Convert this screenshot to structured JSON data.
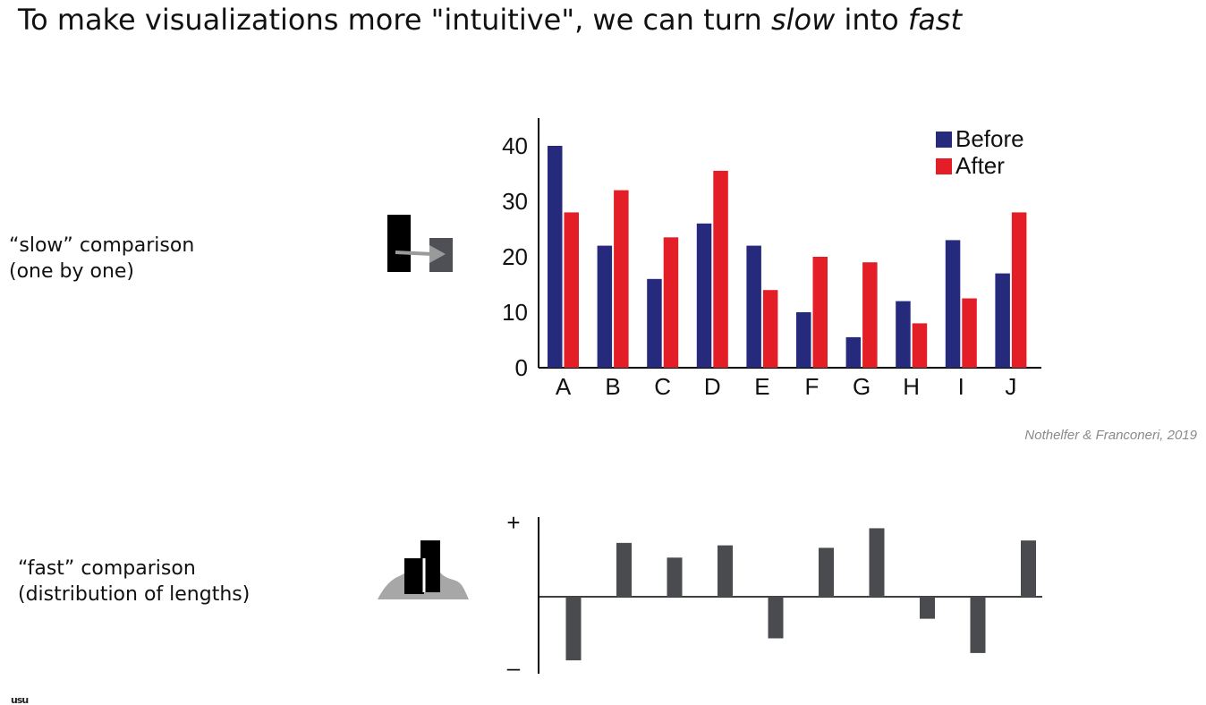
{
  "slide": {
    "title_pre": "To make visualizations more \"intuitive\", we can turn ",
    "title_slow": "slow",
    "title_mid": " into ",
    "title_fast": "fast",
    "slow_label_line1": "“slow” comparison",
    "slow_label_line2": "(one by one)",
    "fast_label_line1": "“fast” comparison",
    "fast_label_line2": "(distribution of lengths)",
    "citation": "Nothelfer & Franconeri, 2019",
    "footer_mark": "usu",
    "slow_icon": "side-by-side-compare-icon",
    "fast_icon": "length-distribution-icon"
  },
  "chart_data": [
    {
      "type": "bar",
      "categories": [
        "A",
        "B",
        "C",
        "D",
        "E",
        "F",
        "G",
        "H",
        "I",
        "J"
      ],
      "series": [
        {
          "name": "Before",
          "color": "#262a7d",
          "values": [
            40,
            22,
            16,
            26,
            22,
            10,
            5.5,
            12,
            23,
            17
          ]
        },
        {
          "name": "After",
          "color": "#e41e26",
          "values": [
            28,
            32,
            23.5,
            35.5,
            14,
            20,
            19,
            8,
            12.5,
            28
          ]
        }
      ],
      "yticks": [
        0,
        10,
        20,
        30,
        40
      ],
      "ylim": [
        0,
        45
      ],
      "legend": "top-right",
      "grid": false
    },
    {
      "type": "bar",
      "categories": [
        "A",
        "B",
        "C",
        "D",
        "E",
        "F",
        "G",
        "H",
        "I",
        "J"
      ],
      "values": [
        -26,
        22,
        16,
        21,
        -17,
        20,
        28,
        -9,
        -23,
        23
      ],
      "ylim": [
        -32,
        32
      ],
      "color": "#4a4b4f",
      "ytick_labels": [
        "+",
        "–"
      ],
      "grid": false
    }
  ]
}
